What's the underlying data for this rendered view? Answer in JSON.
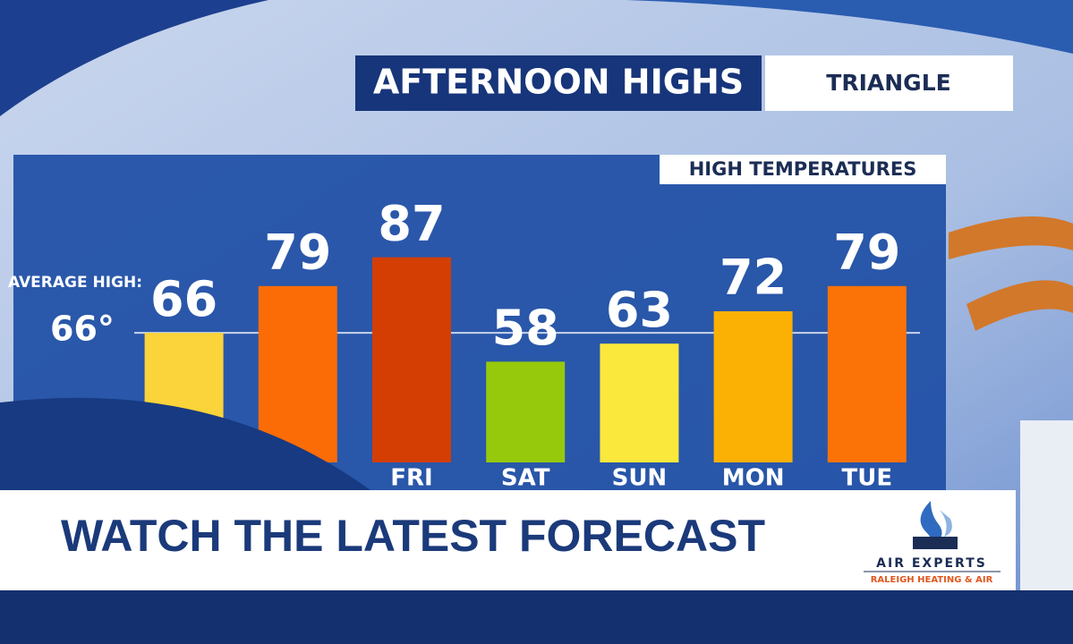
{
  "header": {
    "title": "AFTERNOON HIGHS",
    "location": "TRIANGLE"
  },
  "chart_data": {
    "type": "bar",
    "title": "HIGH TEMPERATURES",
    "categories": [
      null,
      null,
      "FRI",
      "SAT",
      "SUN",
      "MON",
      "TUE"
    ],
    "values": [
      66,
      79,
      87,
      58,
      63,
      72,
      79
    ],
    "colors": [
      "#fbd33a",
      "#fb6c06",
      "#d43e03",
      "#96c90c",
      "#fbe83c",
      "#fbb004",
      "#fb7206"
    ],
    "ylim": [
      30,
      115
    ],
    "reference_line": {
      "label": "AVERAGE HIGH:",
      "value": 66,
      "value_label": "66°"
    }
  },
  "banner": {
    "text": "WATCH THE LATEST FORECAST"
  },
  "sponsor": {
    "name": "AIR EXPERTS",
    "tagline": "RALEIGH HEATING & AIR"
  }
}
